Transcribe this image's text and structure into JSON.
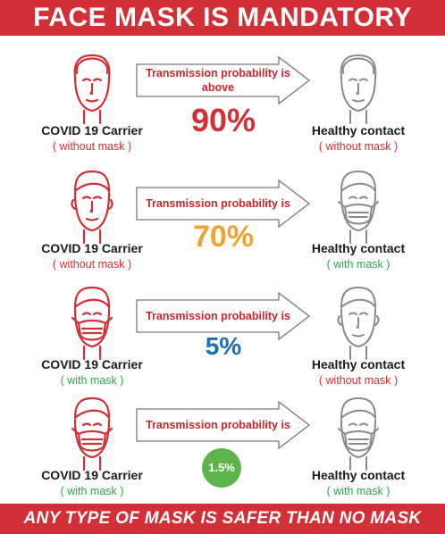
{
  "title": "FACE MASK IS MANDATORY",
  "footer": "ANY TYPE OF MASK IS SAFER THAN NO MASK",
  "colors": {
    "red": "#d22f36",
    "gray_face": "#8a8a8a",
    "green": "#30a54a",
    "orange": "#f2a32f",
    "blue": "#1f6fb5",
    "badge_green": "#5db34c"
  },
  "rows": [
    {
      "carrier_name": "COVID 19 Carrier",
      "carrier_mask": "( without mask )",
      "contact_name": "Healthy contact",
      "contact_mask": "( without  mask )",
      "arrow_text": "Transmission probability is above",
      "probability": "90%"
    },
    {
      "carrier_name": "COVID 19 Carrier",
      "carrier_mask": "( without mask )",
      "contact_name": "Healthy contact",
      "contact_mask": "( with mask )",
      "arrow_text": "Transmission probability is",
      "probability": "70%"
    },
    {
      "carrier_name": "COVID 19 Carrier",
      "carrier_mask": "( with mask )",
      "contact_name": "Healthy contact",
      "contact_mask": "( without mask )",
      "arrow_text": "Transmission probability is",
      "probability": "5%"
    },
    {
      "carrier_name": "COVID 19 Carrier",
      "carrier_mask": "( with mask )",
      "contact_name": "Healthy contact",
      "contact_mask": "( with mask )",
      "arrow_text": "Transmission probability is",
      "probability": "1.5%"
    }
  ]
}
